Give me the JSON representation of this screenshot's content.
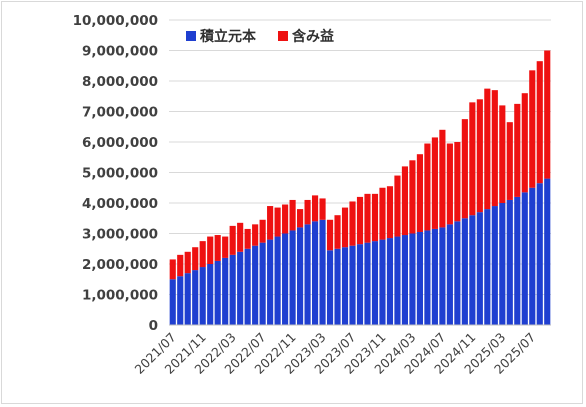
{
  "chart_data": {
    "type": "bar",
    "stacked": true,
    "ylim": [
      0,
      10000000
    ],
    "yticks": [
      0,
      1000000,
      2000000,
      3000000,
      4000000,
      5000000,
      6000000,
      7000000,
      8000000,
      9000000,
      10000000
    ],
    "ytick_labels": [
      "0",
      "1,000,000",
      "2,000,000",
      "3,000,000",
      "4,000,000",
      "5,000,000",
      "6,000,000",
      "7,000,000",
      "8,000,000",
      "9,000,000",
      "10,000,000"
    ],
    "grid": true,
    "legend_position": "top-left",
    "xtick_labels": [
      "2021/07",
      "2021/11",
      "2022/03",
      "2022/07",
      "2022/11",
      "2023/03",
      "2023/07",
      "2023/11",
      "2024/03",
      "2024/07",
      "2024/11",
      "2025/03",
      "2025/07"
    ],
    "xtick_every": 4,
    "categories": [
      "2021/07",
      "2021/08",
      "2021/09",
      "2021/10",
      "2021/11",
      "2021/12",
      "2022/01",
      "2022/02",
      "2022/03",
      "2022/04",
      "2022/05",
      "2022/06",
      "2022/07",
      "2022/08",
      "2022/09",
      "2022/10",
      "2022/11",
      "2022/12",
      "2023/01",
      "2023/02",
      "2023/03",
      "2023/04",
      "2023/05",
      "2023/06",
      "2023/07",
      "2023/08",
      "2023/09",
      "2023/10",
      "2023/11",
      "2023/12",
      "2024/01",
      "2024/02",
      "2024/03",
      "2024/04",
      "2024/05",
      "2024/06",
      "2024/07",
      "2024/08",
      "2024/09",
      "2024/10",
      "2024/11",
      "2024/12",
      "2025/01",
      "2025/02",
      "2025/03",
      "2025/04",
      "2025/05",
      "2025/06",
      "2025/07",
      "2025/08",
      "2025/09"
    ],
    "series": [
      {
        "name": "積立元本",
        "color": "#1f3fd0",
        "values": [
          1500000,
          1600000,
          1700000,
          1800000,
          1900000,
          2000000,
          2100000,
          2200000,
          2300000,
          2400000,
          2500000,
          2600000,
          2700000,
          2800000,
          2900000,
          3000000,
          3100000,
          3200000,
          3300000,
          3400000,
          3450000,
          2450000,
          2500000,
          2550000,
          2600000,
          2650000,
          2700000,
          2750000,
          2800000,
          2850000,
          2900000,
          2950000,
          3000000,
          3050000,
          3100000,
          3150000,
          3200000,
          3300000,
          3400000,
          3500000,
          3600000,
          3700000,
          3800000,
          3900000,
          4000000,
          4100000,
          4200000,
          4350000,
          4500000,
          4650000,
          4800000
        ]
      },
      {
        "name": "含み益",
        "color": "#ee1111",
        "values": [
          650000,
          700000,
          700000,
          750000,
          850000,
          900000,
          850000,
          700000,
          950000,
          950000,
          650000,
          700000,
          750000,
          1100000,
          950000,
          950000,
          1000000,
          600000,
          800000,
          850000,
          700000,
          1000000,
          1100000,
          1300000,
          1450000,
          1550000,
          1600000,
          1550000,
          1700000,
          1700000,
          2000000,
          2250000,
          2400000,
          2550000,
          2850000,
          3000000,
          3200000,
          2650000,
          2600000,
          3250000,
          3700000,
          3700000,
          3950000,
          3800000,
          3200000,
          2550000,
          3050000,
          3250000,
          3850000,
          4000000,
          4200000
        ]
      }
    ]
  }
}
